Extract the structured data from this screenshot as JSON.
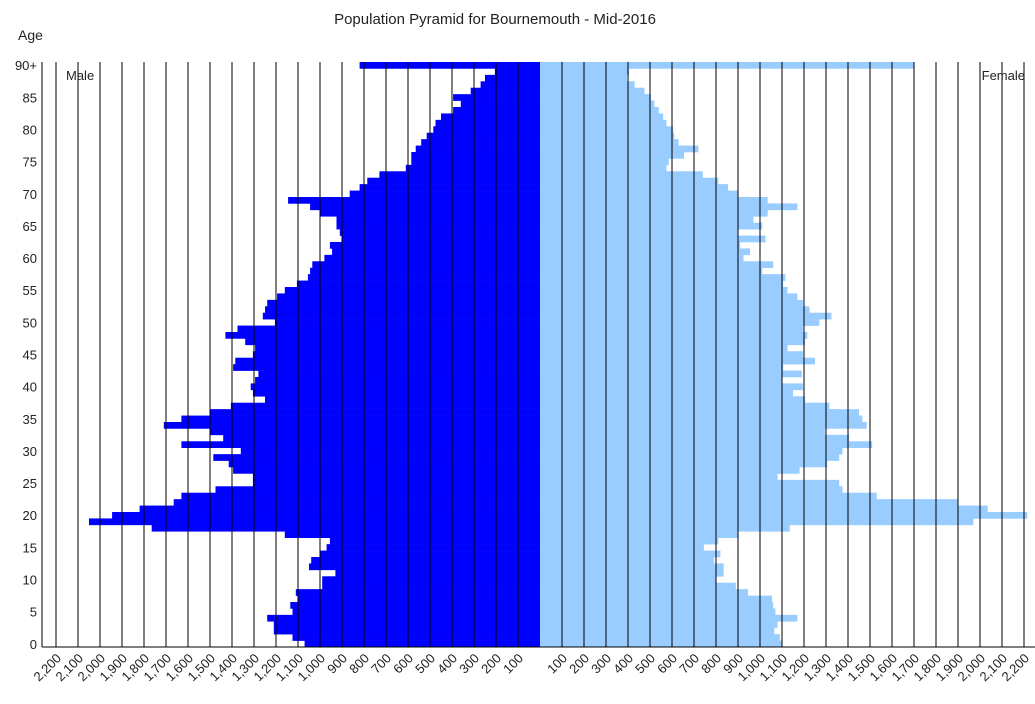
{
  "chart_data": {
    "type": "pyramid",
    "title": "Population Pyramid for Bournemouth  - Mid-2016",
    "y_label": "Age",
    "categories": [
      "0",
      null,
      null,
      null,
      null,
      "5",
      null,
      null,
      null,
      null,
      "10",
      null,
      null,
      null,
      null,
      "15",
      null,
      null,
      null,
      null,
      "20",
      null,
      null,
      null,
      null,
      "25",
      null,
      null,
      null,
      null,
      "30",
      null,
      null,
      null,
      null,
      "35",
      null,
      null,
      null,
      null,
      "40",
      null,
      null,
      null,
      null,
      "45",
      null,
      null,
      null,
      null,
      "50",
      null,
      null,
      null,
      null,
      "55",
      null,
      null,
      null,
      null,
      "60",
      null,
      null,
      null,
      null,
      "65",
      null,
      null,
      null,
      null,
      "70",
      null,
      null,
      null,
      null,
      "75",
      null,
      null,
      null,
      null,
      "80",
      null,
      null,
      null,
      null,
      "85",
      null,
      null,
      null,
      null,
      "90+"
    ],
    "series": [
      {
        "name": "Male",
        "color": "#0000ff",
        "side": "left",
        "values": [
          1070,
          1125,
          1210,
          1210,
          1240,
          1125,
          1135,
          1100,
          1110,
          990,
          990,
          930,
          1050,
          1040,
          1000,
          970,
          955,
          1160,
          1765,
          2050,
          1945,
          1820,
          1665,
          1630,
          1475,
          1305,
          1305,
          1395,
          1415,
          1485,
          1360,
          1630,
          1440,
          1500,
          1710,
          1630,
          1500,
          1405,
          1250,
          1305,
          1315,
          1295,
          1280,
          1395,
          1385,
          1305,
          1295,
          1340,
          1430,
          1375,
          1205,
          1260,
          1250,
          1240,
          1195,
          1160,
          1105,
          1055,
          1045,
          1035,
          980,
          945,
          955,
          900,
          910,
          925,
          925,
          1000,
          1045,
          1145,
          865,
          820,
          785,
          730,
          610,
          585,
          585,
          565,
          540,
          515,
          485,
          475,
          450,
          395,
          360,
          395,
          315,
          270,
          250,
          205,
          820
        ]
      },
      {
        "name": "Female",
        "color": "#99ccff",
        "side": "right",
        "values": [
          1100,
          1090,
          1065,
          1080,
          1170,
          1070,
          1060,
          1055,
          945,
          890,
          800,
          835,
          835,
          790,
          820,
          745,
          810,
          900,
          1135,
          1970,
          2215,
          2035,
          1900,
          1530,
          1375,
          1360,
          1080,
          1180,
          1305,
          1360,
          1375,
          1510,
          1405,
          1295,
          1485,
          1465,
          1450,
          1315,
          1205,
          1150,
          1195,
          1100,
          1190,
          1105,
          1250,
          1195,
          1125,
          1205,
          1215,
          1195,
          1270,
          1325,
          1225,
          1195,
          1170,
          1125,
          1105,
          1115,
          1010,
          1060,
          925,
          955,
          910,
          1025,
          900,
          1010,
          970,
          1035,
          1170,
          1035,
          900,
          855,
          810,
          740,
          575,
          585,
          655,
          720,
          630,
          610,
          605,
          575,
          560,
          540,
          520,
          505,
          475,
          430,
          395,
          405,
          1700
        ]
      }
    ],
    "xlim": [
      0,
      2250
    ],
    "xticks": [
      100,
      200,
      300,
      400,
      500,
      600,
      700,
      800,
      900,
      {
        "value": 1000,
        "label": "1,000"
      },
      {
        "value": 1100,
        "label": "1,100"
      },
      {
        "value": 1200,
        "label": "1,200"
      },
      {
        "value": 1300,
        "label": "1,300"
      },
      {
        "value": 1400,
        "label": "1,400"
      },
      {
        "value": 1500,
        "label": "1,500"
      },
      {
        "value": 1600,
        "label": "1,600"
      },
      {
        "value": 1700,
        "label": "1,700"
      },
      {
        "value": 1800,
        "label": "1,800"
      },
      {
        "value": 1900,
        "label": "1,900"
      },
      {
        "value": 2000,
        "label": "2,000"
      },
      {
        "value": 2100,
        "label": "2,100"
      },
      {
        "value": 2200,
        "label": "2,200"
      }
    ],
    "grid": true
  }
}
